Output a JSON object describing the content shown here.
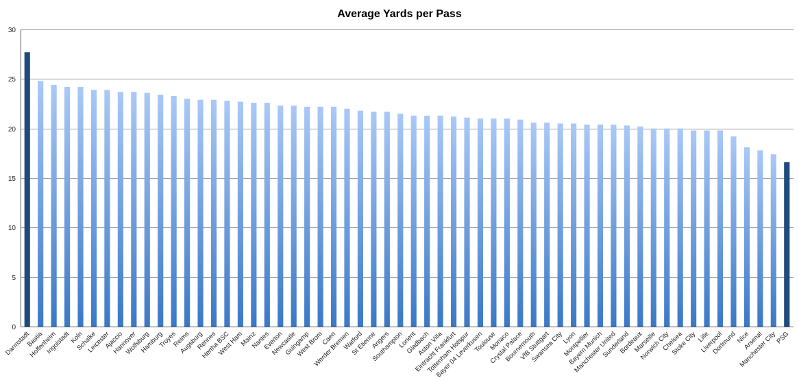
{
  "chart_data": {
    "type": "bar",
    "title": "Average Yards per Pass",
    "xlabel": "",
    "ylabel": "",
    "ylim": [
      0,
      30
    ],
    "yticks": [
      0,
      5,
      10,
      15,
      20,
      25,
      30
    ],
    "grid": true,
    "colors": {
      "highlight": "#1f4a7e",
      "bar_top": "#aac9f7",
      "bar_bottom": "#3a78c7"
    },
    "highlighted": [
      "Darmstadt",
      "PSG"
    ],
    "categories": [
      "Darmstadt",
      "Bastia",
      "Hoffenheim",
      "Ingolstadt",
      "Koln",
      "Schalke",
      "Leicester",
      "Ajaccio",
      "Hannover",
      "Wolfsburg",
      "Hamburg",
      "Troyes",
      "Reims",
      "Augsburg",
      "Rennes",
      "Hertha BSC",
      "West Ham",
      "Mainz",
      "Nantes",
      "Everton",
      "Newcastle",
      "Guingamp",
      "West Brom",
      "Caen",
      "Werder Bremen",
      "Watford",
      "St Etienne",
      "Angers",
      "Southampton",
      "Lorient",
      "Gladbach",
      "Aston Villa",
      "Eintracht Frankfurt",
      "Tottenham Hotspur",
      "Bayer 04 Leverkusen",
      "Toulouse",
      "Monaco",
      "Crystal Palace",
      "Bournemouth",
      "VfB Stuttgart",
      "Swansea City",
      "Lyon",
      "Montpellier",
      "Bayern Munich",
      "Manchester United",
      "Sunderland",
      "Bordeaux",
      "Marseille",
      "Norwich City",
      "Chelsea",
      "Stoke City",
      "Lille",
      "Liverpool",
      "Dortmund",
      "Nice",
      "Arsenal",
      "Manchester City",
      "PSG"
    ],
    "values": [
      27.7,
      24.8,
      24.4,
      24.2,
      24.2,
      23.9,
      23.9,
      23.7,
      23.7,
      23.6,
      23.4,
      23.3,
      23.0,
      22.9,
      22.9,
      22.8,
      22.7,
      22.6,
      22.6,
      22.3,
      22.3,
      22.2,
      22.2,
      22.2,
      22.0,
      21.8,
      21.7,
      21.7,
      21.5,
      21.3,
      21.3,
      21.3,
      21.2,
      21.1,
      21.0,
      21.0,
      21.0,
      20.9,
      20.6,
      20.6,
      20.5,
      20.5,
      20.4,
      20.4,
      20.4,
      20.3,
      20.2,
      20.0,
      20.0,
      20.0,
      19.8,
      19.8,
      19.8,
      19.2,
      18.1,
      17.8,
      17.4,
      16.6
    ]
  }
}
